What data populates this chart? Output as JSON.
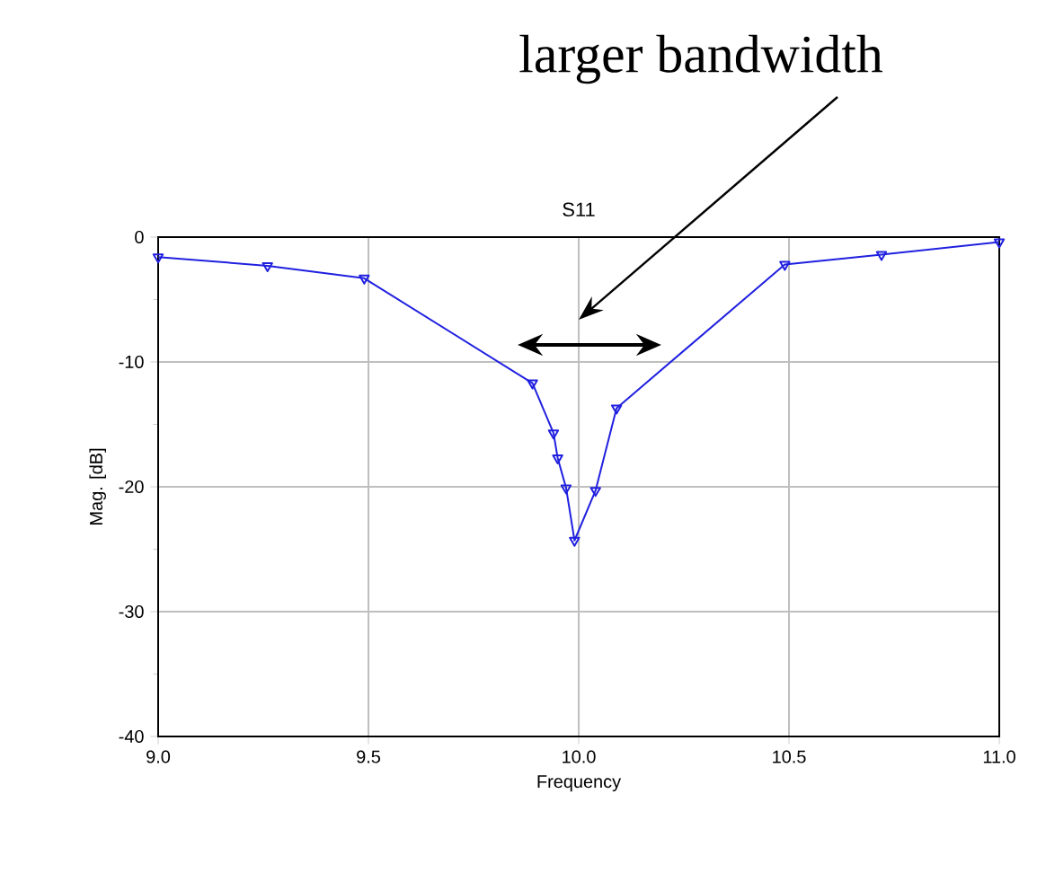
{
  "chart_data": {
    "type": "line",
    "title": "S11",
    "xlabel": "Frequency",
    "ylabel": "Mag. [dB]",
    "annotations": [
      "larger bandwidth"
    ],
    "x": [
      9.0,
      9.26,
      9.49,
      9.89,
      9.94,
      9.95,
      9.97,
      9.99,
      10.04,
      10.09,
      10.49,
      10.72,
      11.0
    ],
    "series": [
      {
        "color": "#2020e0",
        "values": [
          -1.6,
          -2.3,
          -3.3,
          -11.7,
          -15.7,
          -17.7,
          -20.1,
          -24.3,
          -20.3,
          -13.7,
          -2.2,
          -1.4,
          -0.4
        ]
      }
    ],
    "xlim": [
      9.0,
      11.0
    ],
    "ylim": [
      -40,
      0
    ],
    "xticks": [
      {
        "value": 9.0,
        "label": "9.0"
      },
      {
        "value": 9.5,
        "label": "9.5"
      },
      {
        "value": 10.0,
        "label": "10.0"
      },
      {
        "value": 10.5,
        "label": "10.5"
      },
      {
        "value": 11.0,
        "label": "11.0"
      }
    ],
    "yticks": [
      -40,
      -30,
      -20,
      -10,
      0
    ],
    "grid": true,
    "marker": "triangle",
    "line_style": "solid"
  }
}
